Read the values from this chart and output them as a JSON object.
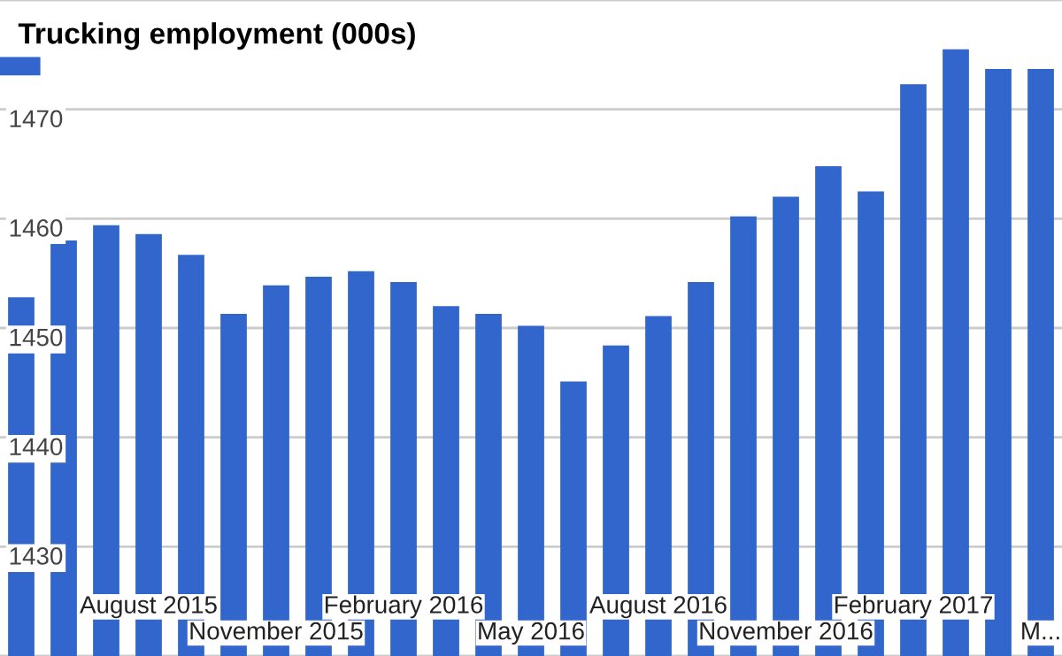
{
  "chart_data": {
    "type": "bar",
    "title": "Trucking employment (000s)",
    "categories": [
      null,
      null,
      null,
      "August 2015",
      null,
      null,
      "November 2015",
      null,
      null,
      "February 2016",
      null,
      null,
      "May 2016",
      null,
      null,
      "August 2016",
      null,
      null,
      "November 2016",
      null,
      null,
      "February 2017",
      null,
      null,
      "M..."
    ],
    "series": [
      {
        "color": "#3366cc",
        "values": [
          1452.8,
          1458.0,
          1459.4,
          1458.6,
          1456.7,
          1451.3,
          1453.9,
          1454.7,
          1455.2,
          1454.2,
          1452.0,
          1451.3,
          1450.2,
          1445.1,
          1448.4,
          1451.1,
          1454.2,
          1460.2,
          1462.0,
          1464.8,
          1462.5,
          1472.3,
          1475.5,
          1473.7,
          1473.7
        ]
      }
    ],
    "ylim": [
      1420,
      1480
    ],
    "yticks": [
      {
        "value": 1420,
        "label": null
      },
      1430,
      1440,
      1450,
      1460,
      1470,
      {
        "value": 1480,
        "label": null
      }
    ],
    "grid": "y"
  }
}
